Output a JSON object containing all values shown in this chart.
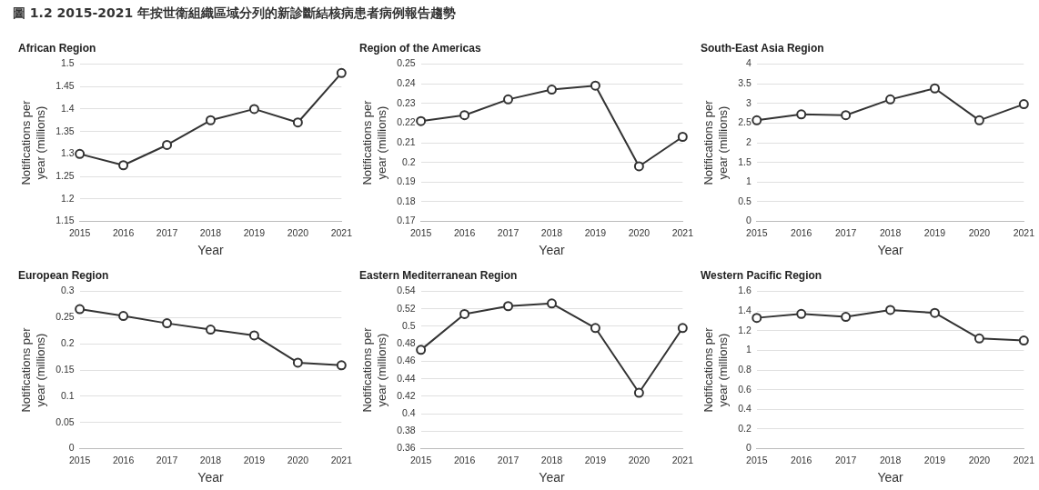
{
  "chart_data": [
    {
      "type": "other",
      "title": "圖 1.2 2015-2021 年按世衛組織區域分列的新診斷結核病患者病例報告趨勢"
    },
    {
      "type": "line",
      "title": "African Region",
      "xlabel": "Year",
      "ylabel": "Notifications per year (millions)",
      "categories": [
        "2015",
        "2016",
        "2017",
        "2018",
        "2019",
        "2020",
        "2021"
      ],
      "series": [
        {
          "color": "#333333",
          "values": [
            1.3,
            1.275,
            1.32,
            1.375,
            1.4,
            1.37,
            1.48
          ]
        }
      ],
      "ylim": [
        1.15,
        1.5
      ],
      "yticks": [
        1.15,
        1.2,
        1.25,
        1.3,
        1.35,
        1.4,
        1.45,
        1.5
      ],
      "grid": "y",
      "marker": "circle",
      "line_style": "solid"
    },
    {
      "type": "line",
      "title": "Region of the Americas",
      "xlabel": "Year",
      "ylabel": "Notifications per year (millions)",
      "categories": [
        "2015",
        "2016",
        "2017",
        "2018",
        "2019",
        "2020",
        "2021"
      ],
      "series": [
        {
          "color": "#333333",
          "values": [
            0.221,
            0.224,
            0.232,
            0.237,
            0.239,
            0.198,
            0.213
          ]
        }
      ],
      "ylim": [
        0.17,
        0.25
      ],
      "yticks": [
        0.17,
        0.18,
        0.19,
        0.2,
        0.21,
        0.22,
        0.23,
        0.24,
        0.25
      ],
      "grid": "y",
      "marker": "circle",
      "line_style": "solid"
    },
    {
      "type": "line",
      "title": "South-East Asia Region",
      "xlabel": "Year",
      "ylabel": "Notifications per year (millions)",
      "categories": [
        "2015",
        "2016",
        "2017",
        "2018",
        "2019",
        "2020",
        "2021"
      ],
      "series": [
        {
          "color": "#333333",
          "values": [
            2.57,
            2.72,
            2.7,
            3.1,
            3.38,
            2.57,
            2.98
          ]
        }
      ],
      "ylim": [
        0,
        4
      ],
      "yticks": [
        0,
        0.5,
        1,
        1.5,
        2,
        2.5,
        3,
        3.5,
        4
      ],
      "grid": "y",
      "marker": "circle",
      "line_style": "solid"
    },
    {
      "type": "line",
      "title": "European Region",
      "xlabel": "Year",
      "ylabel": "Notifications per year (millions)",
      "categories": [
        "2015",
        "2016",
        "2017",
        "2018",
        "2019",
        "2020",
        "2021"
      ],
      "series": [
        {
          "color": "#333333",
          "values": [
            0.266,
            0.253,
            0.239,
            0.227,
            0.216,
            0.164,
            0.159
          ]
        }
      ],
      "ylim": [
        0,
        0.3
      ],
      "yticks": [
        0,
        0.05,
        0.1,
        0.15,
        0.2,
        0.25,
        0.3
      ],
      "grid": "y",
      "marker": "circle",
      "line_style": "solid"
    },
    {
      "type": "line",
      "title": "Eastern Mediterranean Region",
      "xlabel": "Year",
      "ylabel": "Notifications per year (millions)",
      "categories": [
        "2015",
        "2016",
        "2017",
        "2018",
        "2019",
        "2020",
        "2021"
      ],
      "series": [
        {
          "color": "#333333",
          "values": [
            0.473,
            0.514,
            0.523,
            0.526,
            0.498,
            0.424,
            0.498
          ]
        }
      ],
      "ylim": [
        0.36,
        0.54
      ],
      "yticks": [
        0.36,
        0.38,
        0.4,
        0.42,
        0.44,
        0.46,
        0.48,
        0.5,
        0.52,
        0.54
      ],
      "grid": "y",
      "marker": "circle",
      "line_style": "solid"
    },
    {
      "type": "line",
      "title": "Western Pacific Region",
      "xlabel": "Year",
      "ylabel": "Notifications per year (millions)",
      "categories": [
        "2015",
        "2016",
        "2017",
        "2018",
        "2019",
        "2020",
        "2021"
      ],
      "series": [
        {
          "color": "#333333",
          "values": [
            1.33,
            1.37,
            1.34,
            1.41,
            1.38,
            1.12,
            1.1
          ]
        }
      ],
      "ylim": [
        0,
        1.6
      ],
      "yticks": [
        0,
        0.2,
        0.4,
        0.6,
        0.8,
        1,
        1.2,
        1.4,
        1.6
      ],
      "grid": "y",
      "marker": "circle",
      "line_style": "solid"
    }
  ]
}
